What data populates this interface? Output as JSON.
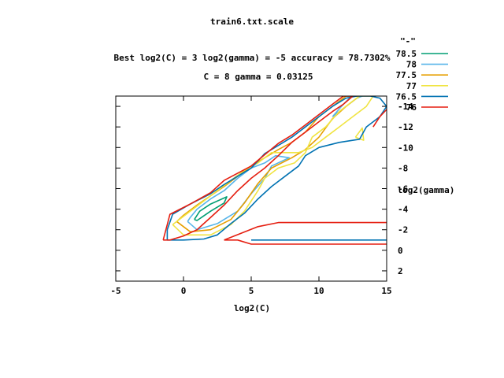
{
  "chart_data": {
    "type": "line",
    "title": "train6.txt.scale",
    "subtitle_line1": "Best log2(C) = 3  log2(gamma) = -5  accuracy = 78.7302%",
    "subtitle_line2": "C = 8  gamma = 0.03125",
    "xlabel": "log2(C)",
    "ylabel": "log2(gamma)",
    "xlim": [
      -5,
      15
    ],
    "ylim": [
      3,
      -15
    ],
    "x_ticks": [
      -5,
      0,
      5,
      10,
      15
    ],
    "y_ticks": [
      -14,
      -12,
      -10,
      -8,
      -6,
      -4,
      -2,
      0,
      2
    ],
    "legend_title": "\"-\"",
    "legend_placement": "top-right",
    "series": [
      {
        "name": "78.5",
        "color": "#009e73",
        "paths": [
          [
            [
              0.8,
              -3
            ],
            [
              1.2,
              -3.8
            ],
            [
              2,
              -4.5
            ],
            [
              3.2,
              -5.2
            ],
            [
              3,
              -4.6
            ],
            [
              2,
              -3.8
            ],
            [
              1,
              -2.9
            ],
            [
              0.8,
              -3
            ]
          ]
        ]
      },
      {
        "name": "78",
        "color": "#56b4e9",
        "paths": [
          [
            [
              0.3,
              -2.8
            ],
            [
              1,
              -2
            ],
            [
              2.5,
              -2.6
            ],
            [
              4,
              -3.8
            ],
            [
              5,
              -5.5
            ],
            [
              6,
              -7
            ],
            [
              6.5,
              -8.2
            ],
            [
              7.8,
              -9
            ],
            [
              6.8,
              -9.2
            ],
            [
              6,
              -8.5
            ],
            [
              5,
              -8
            ],
            [
              4,
              -7
            ],
            [
              3,
              -5.8
            ],
            [
              2,
              -5
            ],
            [
              1,
              -4
            ],
            [
              0.5,
              -3.2
            ],
            [
              0.3,
              -2.8
            ]
          ],
          [
            [
              11,
              -13
            ],
            [
              12,
              -14
            ],
            [
              12.8,
              -14.8
            ],
            [
              13.2,
              -15
            ],
            [
              12.4,
              -15
            ],
            [
              11.8,
              -14.2
            ],
            [
              11,
              -13
            ]
          ]
        ]
      },
      {
        "name": "77.5",
        "color": "#e69f00",
        "paths": [
          [
            [
              -0.5,
              -2.8
            ],
            [
              0.5,
              -1.8
            ],
            [
              2,
              -2
            ],
            [
              3.5,
              -3
            ],
            [
              4.5,
              -4.6
            ],
            [
              5.5,
              -6.5
            ],
            [
              6.5,
              -8
            ],
            [
              8,
              -9
            ],
            [
              9,
              -9.8
            ],
            [
              10,
              -11
            ],
            [
              11,
              -12.8
            ],
            [
              12,
              -14
            ],
            [
              13,
              -15
            ],
            [
              12,
              -15
            ],
            [
              11,
              -14
            ],
            [
              10,
              -13
            ],
            [
              9,
              -11.5
            ],
            [
              8,
              -10.5
            ],
            [
              7,
              -9.8
            ],
            [
              6,
              -9
            ],
            [
              5,
              -8.2
            ],
            [
              4,
              -7.2
            ],
            [
              3,
              -6.2
            ],
            [
              2,
              -5.3
            ],
            [
              1,
              -4.4
            ],
            [
              0,
              -3.4
            ],
            [
              -0.5,
              -2.8
            ]
          ]
        ]
      },
      {
        "name": "77",
        "color": "#f0e442",
        "paths": [
          [
            [
              -0.8,
              -2.5
            ],
            [
              0,
              -1.5
            ],
            [
              2,
              -1.5
            ],
            [
              3.5,
              -2.5
            ],
            [
              4.5,
              -3.8
            ],
            [
              5.5,
              -5.8
            ],
            [
              6,
              -7
            ],
            [
              7,
              -8
            ],
            [
              8.2,
              -8.5
            ],
            [
              9,
              -9.5
            ],
            [
              9.5,
              -11
            ],
            [
              10.5,
              -12
            ],
            [
              11.5,
              -13.5
            ],
            [
              12.5,
              -14.5
            ],
            [
              13,
              -15
            ],
            [
              14,
              -15
            ],
            [
              13.5,
              -14
            ],
            [
              12.5,
              -13
            ],
            [
              11.5,
              -12
            ],
            [
              10.5,
              -11
            ],
            [
              9.5,
              -10
            ],
            [
              8.5,
              -9.5
            ],
            [
              7.5,
              -9.5
            ],
            [
              6.5,
              -9.5
            ],
            [
              5.5,
              -8.5
            ],
            [
              4.5,
              -7.8
            ],
            [
              3.5,
              -6.8
            ],
            [
              2.5,
              -5.8
            ],
            [
              1.5,
              -4.8
            ],
            [
              0.5,
              -3.8
            ],
            [
              -0.8,
              -2.5
            ]
          ],
          [
            [
              12.7,
              -11
            ],
            [
              13.2,
              -11.9
            ],
            [
              13.3,
              -10.7
            ],
            [
              12.7,
              -11
            ]
          ]
        ]
      },
      {
        "name": "76.5",
        "color": "#0072b2",
        "paths": [
          [
            [
              -1.2,
              -2
            ],
            [
              -0.8,
              -3.5
            ],
            [
              0.5,
              -4.5
            ],
            [
              2,
              -5.5
            ],
            [
              3,
              -6.4
            ],
            [
              4,
              -7.2
            ],
            [
              5,
              -8
            ],
            [
              6,
              -9.4
            ],
            [
              7,
              -10.2
            ],
            [
              8,
              -11
            ],
            [
              9,
              -12
            ],
            [
              10,
              -13
            ],
            [
              11,
              -14
            ],
            [
              12,
              -14.8
            ],
            [
              12.8,
              -15
            ],
            [
              13.8,
              -15
            ],
            [
              14.5,
              -14.8
            ],
            [
              15,
              -14
            ],
            [
              14.5,
              -13
            ],
            [
              13.5,
              -12
            ],
            [
              13,
              -10.8
            ],
            [
              11.5,
              -10.5
            ],
            [
              10,
              -10
            ],
            [
              9,
              -9.2
            ],
            [
              8.5,
              -8.2
            ],
            [
              7.5,
              -7.2
            ],
            [
              6.5,
              -6.2
            ],
            [
              5.5,
              -5
            ],
            [
              4.5,
              -3.6
            ],
            [
              3.5,
              -2.6
            ],
            [
              2.5,
              -1.5
            ],
            [
              1.5,
              -1.1
            ],
            [
              0,
              -1
            ],
            [
              -1.2,
              -1
            ],
            [
              -1.2,
              -2
            ]
          ],
          [
            [
              5,
              -1
            ],
            [
              15,
              -1
            ]
          ]
        ]
      },
      {
        "name": "76",
        "color": "#e51e10",
        "paths": [
          [
            [
              -1.5,
              -1
            ],
            [
              -1.2,
              -2.5
            ],
            [
              -1,
              -3.5
            ],
            [
              0.5,
              -4.5
            ],
            [
              2,
              -5.6
            ],
            [
              3,
              -6.8
            ],
            [
              5,
              -8.2
            ],
            [
              6,
              -9.3
            ],
            [
              7,
              -10.4
            ],
            [
              8,
              -11.2
            ],
            [
              9,
              -12.2
            ],
            [
              10,
              -13.2
            ],
            [
              11,
              -14.2
            ],
            [
              11.8,
              -15
            ],
            [
              12.5,
              -15
            ],
            [
              11.8,
              -14.2
            ],
            [
              11,
              -13.5
            ],
            [
              10,
              -12.5
            ],
            [
              9,
              -11.5
            ],
            [
              8,
              -10.5
            ],
            [
              7,
              -9.2
            ],
            [
              6,
              -8
            ],
            [
              5,
              -7
            ],
            [
              4,
              -5.8
            ],
            [
              3,
              -4.4
            ],
            [
              2,
              -3.2
            ],
            [
              1,
              -2
            ],
            [
              0,
              -1.4
            ],
            [
              -1,
              -1
            ],
            [
              -1.5,
              -1
            ]
          ],
          [
            [
              3,
              -1
            ],
            [
              5.5,
              -2.3
            ],
            [
              7,
              -2.7
            ],
            [
              15,
              -2.7
            ]
          ],
          [
            [
              3,
              -1
            ],
            [
              4,
              -1
            ],
            [
              5,
              -0.6
            ],
            [
              15,
              -0.6
            ]
          ],
          [
            [
              14,
              -12
            ],
            [
              14.5,
              -13
            ],
            [
              15,
              -13.7
            ]
          ]
        ]
      }
    ]
  }
}
